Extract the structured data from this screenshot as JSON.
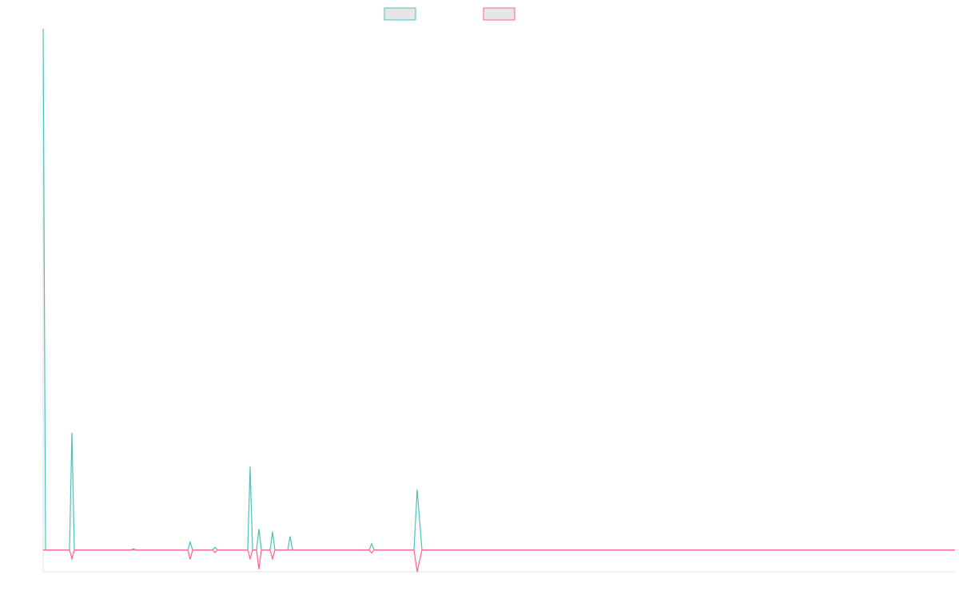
{
  "chart_data": {
    "type": "line",
    "x": [
      0,
      3,
      33,
      36,
      39,
      110,
      113,
      116,
      181,
      184,
      187,
      212,
      215,
      218,
      256,
      259,
      262,
      267,
      270,
      273,
      284,
      287,
      290,
      306,
      309,
      312,
      408,
      411,
      414,
      464,
      468,
      474,
      1141
    ],
    "series": [
      {
        "color": "#4bc0c0",
        "values": [
          100,
          0,
          0,
          22.5,
          0,
          0,
          0,
          0,
          0,
          1.5,
          0,
          0,
          0.5,
          0,
          0,
          16,
          0,
          0,
          4,
          0,
          0,
          3.5,
          0,
          0,
          2.6,
          0,
          0,
          1.2,
          0,
          0,
          11.6,
          0,
          0
        ]
      },
      {
        "color": "#ff6384",
        "values": [
          0,
          0,
          0,
          -1.7,
          0,
          0,
          0.2,
          0,
          0,
          -1.8,
          0,
          0,
          -0.5,
          0,
          0,
          -1.7,
          0,
          0,
          -3.7,
          0,
          0,
          -1.7,
          0,
          0,
          0,
          0,
          0,
          -0.6,
          0,
          0,
          -4.2,
          0,
          0
        ]
      }
    ],
    "xlim": [
      0,
      1141
    ],
    "ylim": [
      -4.2,
      100
    ],
    "legend": "top"
  }
}
